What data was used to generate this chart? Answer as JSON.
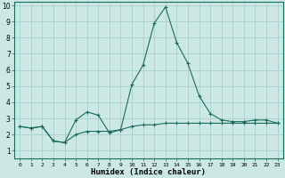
{
  "xlabel": "Humidex (Indice chaleur)",
  "x": [
    0,
    1,
    2,
    3,
    4,
    5,
    6,
    7,
    8,
    9,
    10,
    11,
    12,
    13,
    14,
    15,
    16,
    17,
    18,
    19,
    20,
    21,
    22,
    23
  ],
  "line1": [
    2.5,
    2.4,
    2.5,
    1.6,
    1.5,
    2.9,
    3.4,
    3.2,
    2.1,
    2.3,
    5.1,
    6.3,
    8.9,
    9.9,
    7.7,
    6.4,
    4.4,
    3.3,
    2.9,
    2.8,
    2.8,
    2.9,
    2.9,
    2.7
  ],
  "line2": [
    2.5,
    2.4,
    2.5,
    1.6,
    1.5,
    2.0,
    2.2,
    2.2,
    2.2,
    2.3,
    2.5,
    2.6,
    2.6,
    2.7,
    2.7,
    2.7,
    2.7,
    2.7,
    2.7,
    2.7,
    2.7,
    2.7,
    2.7,
    2.7
  ],
  "line_color": "#1a6b5e",
  "bg_color": "#cce8e5",
  "grid_color": "#aacfcc",
  "ylim_min": 0.5,
  "ylim_max": 10.2,
  "xlim_min": -0.5,
  "xlim_max": 23.5,
  "yticks": [
    1,
    2,
    3,
    4,
    5,
    6,
    7,
    8,
    9,
    10
  ],
  "xticks": [
    0,
    1,
    2,
    3,
    4,
    5,
    6,
    7,
    8,
    9,
    10,
    11,
    12,
    13,
    14,
    15,
    16,
    17,
    18,
    19,
    20,
    21,
    22,
    23
  ]
}
